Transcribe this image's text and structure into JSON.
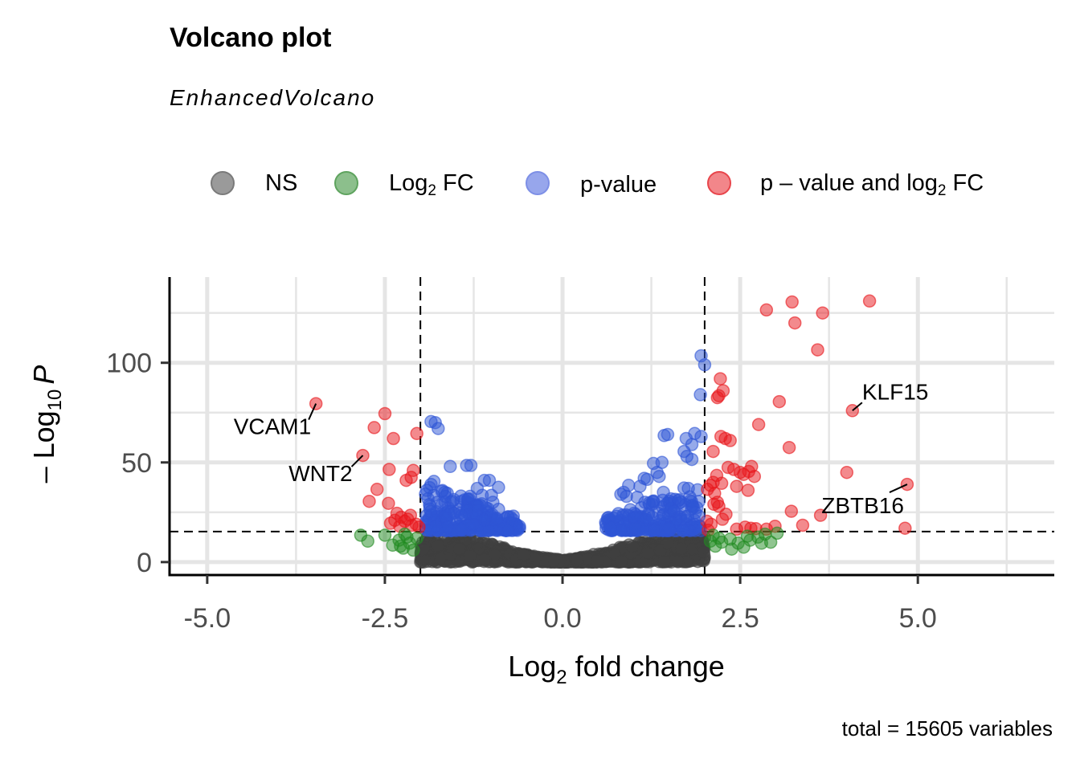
{
  "chart_data": {
    "type": "scatter",
    "title": "Volcano plot",
    "subtitle": "EnhancedVolcano",
    "caption": "total = 15605 variables",
    "xlabel": "Log2 fold change",
    "xlabel_parts": {
      "pre": "Log",
      "sub": "2",
      "post": " fold change"
    },
    "ylabel": "-Log10 P",
    "ylabel_parts": {
      "pre": "– Log",
      "sub": "10",
      "post": "P"
    },
    "xlim": [
      -5.53,
      6.92
    ],
    "ylim": [
      -6.5,
      143
    ],
    "x_ticks": [
      -5.0,
      -2.5,
      0.0,
      2.5,
      5.0
    ],
    "x_tick_labels": [
      "-5.0",
      "-2.5",
      "0.0",
      "2.5",
      "5.0"
    ],
    "y_ticks": [
      0,
      50,
      100
    ],
    "y_tick_labels": [
      "0",
      "50",
      "100"
    ],
    "grid": true,
    "legend_position": "top",
    "thresholds": {
      "log2fc": [
        -2.0,
        2.0
      ],
      "neg_log10_p": 15.3
    },
    "colors": {
      "NS": "#404040",
      "Log2 FC": "#228b22",
      "p-value": "#2e55d6",
      "p - value and log2 FC": "#e8151b",
      "grid": "#e5e5e5"
    },
    "legend": [
      {
        "key": "NS",
        "label": "NS",
        "color": "#9a9a9a",
        "stroke": "#7a7a7a"
      },
      {
        "key": "Log2 FC",
        "label_pre": "Log",
        "label_sub": "2",
        "label_post": " FC",
        "color": "#8cbf8c",
        "stroke": "#5ea35e"
      },
      {
        "key": "p-value",
        "label": "p-value",
        "color": "#97a6ec",
        "stroke": "#7d8fe6"
      },
      {
        "key": "p - value and log2 FC",
        "label_pre": "p – value and log",
        "label_sub": "2",
        "label_post": " FC",
        "color": "#f2868a",
        "stroke": "#e8454b"
      }
    ],
    "total_variables": 15605,
    "series": [
      {
        "name": "p - value and log2 FC",
        "points": [
          [
            -3.47,
            79.5
          ],
          [
            -2.81,
            53.5
          ],
          [
            -2.5,
            74.5
          ],
          [
            -2.65,
            67.5
          ],
          [
            -2.38,
            62.0
          ],
          [
            -2.05,
            64.5
          ],
          [
            -2.1,
            46.0
          ],
          [
            -2.2,
            41.0
          ],
          [
            -2.44,
            46.5
          ],
          [
            -2.13,
            42.5
          ],
          [
            -2.61,
            36.5
          ],
          [
            -2.72,
            30.5
          ],
          [
            -2.45,
            29.5
          ],
          [
            -2.33,
            24.5
          ],
          [
            -2.14,
            23.5
          ],
          [
            -2.27,
            22.5
          ],
          [
            -2.22,
            20.5
          ],
          [
            -2.42,
            19.5
          ],
          [
            -2.12,
            18.5
          ],
          [
            -2.02,
            17.5
          ],
          [
            -2.29,
            18.0
          ],
          [
            -2.36,
            21.0
          ],
          [
            -2.18,
            21.5
          ],
          [
            -2.06,
            19.0
          ],
          [
            4.32,
            131.0
          ],
          [
            3.23,
            130.5
          ],
          [
            2.87,
            126.5
          ],
          [
            3.66,
            125.0
          ],
          [
            3.27,
            120.0
          ],
          [
            3.59,
            106.5
          ],
          [
            2.22,
            92.0
          ],
          [
            2.26,
            86.0
          ],
          [
            2.18,
            82.5
          ],
          [
            2.2,
            83.5
          ],
          [
            3.05,
            80.5
          ],
          [
            4.08,
            76.0
          ],
          [
            2.76,
            69.0
          ],
          [
            2.29,
            62.0
          ],
          [
            2.23,
            63.0
          ],
          [
            2.36,
            61.0
          ],
          [
            3.19,
            57.5
          ],
          [
            2.12,
            55.5
          ],
          [
            2.33,
            47.5
          ],
          [
            2.41,
            46.5
          ],
          [
            2.66,
            48.0
          ],
          [
            2.62,
            45.5
          ],
          [
            2.5,
            45.0
          ],
          [
            2.17,
            43.5
          ],
          [
            2.7,
            43.0
          ],
          [
            2.55,
            44.0
          ],
          [
            4.0,
            45.0
          ],
          [
            2.45,
            38.0
          ],
          [
            2.08,
            38.5
          ],
          [
            2.12,
            40.0
          ],
          [
            2.24,
            39.5
          ],
          [
            2.04,
            36.5
          ],
          [
            2.61,
            36.0
          ],
          [
            2.14,
            34.5
          ],
          [
            4.85,
            39.0
          ],
          [
            3.22,
            25.5
          ],
          [
            4.82,
            17.0
          ],
          [
            3.38,
            18.5
          ],
          [
            3.63,
            23.5
          ],
          [
            2.18,
            30.0
          ],
          [
            2.13,
            29.0
          ],
          [
            2.2,
            28.0
          ],
          [
            2.03,
            20.5
          ],
          [
            2.09,
            19.0
          ],
          [
            2.25,
            21.5
          ],
          [
            2.45,
            16.5
          ],
          [
            2.57,
            17.5
          ],
          [
            2.72,
            16.8
          ],
          [
            2.87,
            16.5
          ],
          [
            2.99,
            18.0
          ],
          [
            2.3,
            24.0
          ],
          [
            2.05,
            16.0
          ],
          [
            2.65,
            17.0
          ]
        ]
      },
      {
        "name": "p-value",
        "points": [
          [
            1.95,
            103.5
          ],
          [
            2.0,
            99.0
          ],
          [
            1.94,
            84.0
          ],
          [
            -1.85,
            70.5
          ],
          [
            -1.79,
            70.0
          ],
          [
            -1.75,
            67.0
          ],
          [
            -1.58,
            48.0
          ],
          [
            -1.35,
            48.5
          ],
          [
            -1.29,
            48.5
          ],
          [
            -1.81,
            40.5
          ],
          [
            -1.85,
            39.0
          ],
          [
            -1.91,
            36.0
          ],
          [
            -1.65,
            33.0
          ],
          [
            -1.55,
            30.5
          ],
          [
            1.43,
            63.5
          ],
          [
            1.48,
            64.0
          ],
          [
            1.86,
            64.5
          ],
          [
            1.95,
            63.0
          ],
          [
            1.74,
            62.0
          ],
          [
            1.82,
            59.0
          ],
          [
            1.71,
            55.5
          ],
          [
            1.75,
            53.0
          ],
          [
            1.28,
            49.5
          ],
          [
            1.4,
            50.0
          ],
          [
            1.82,
            51.5
          ],
          [
            1.33,
            45.0
          ],
          [
            1.15,
            42.0
          ],
          [
            1.19,
            41.5
          ],
          [
            1.36,
            43.0
          ],
          [
            1.09,
            38.0
          ],
          [
            0.93,
            38.5
          ],
          [
            0.86,
            35.0
          ],
          [
            0.82,
            34.0
          ],
          [
            1.42,
            35.0
          ],
          [
            1.41,
            31.0
          ],
          [
            1.77,
            37.0
          ],
          [
            1.84,
            27.5
          ],
          [
            1.76,
            23.0
          ],
          [
            1.92,
            23.0
          ],
          [
            0.9,
            33.0
          ],
          [
            1.05,
            32.5
          ],
          [
            1.16,
            30.0
          ],
          [
            1.27,
            30.5
          ],
          [
            1.53,
            27.0
          ],
          [
            1.57,
            25.5
          ],
          [
            -1.1,
            41.0
          ],
          [
            -1.03,
            41.0
          ],
          [
            -0.9,
            37.5
          ],
          [
            -1.2,
            37.0
          ],
          [
            -1.13,
            33.5
          ],
          [
            -1.0,
            33.5
          ],
          [
            -0.98,
            30.0
          ],
          [
            -1.3,
            33.0
          ],
          [
            -1.34,
            26.0
          ],
          [
            -1.42,
            23.5
          ],
          [
            -0.9,
            26.5
          ],
          [
            -1.01,
            23.5
          ],
          [
            -1.2,
            26.0
          ],
          [
            -0.93,
            22.0
          ],
          [
            -1.1,
            21.0
          ],
          [
            -1.63,
            22.0
          ],
          [
            -1.52,
            24.5
          ],
          [
            -1.78,
            18.0
          ],
          [
            -1.62,
            17.5
          ]
        ]
      },
      {
        "name": "Log2 FC",
        "points": [
          [
            -2.84,
            13.5
          ],
          [
            -2.74,
            10.5
          ],
          [
            -2.5,
            13.5
          ],
          [
            -2.39,
            8.5
          ],
          [
            -2.22,
            14.0
          ],
          [
            -2.3,
            11.0
          ],
          [
            -2.15,
            9.5
          ],
          [
            -2.24,
            7.0
          ],
          [
            -2.1,
            6.0
          ],
          [
            -2.05,
            12.0
          ],
          [
            -2.19,
            12.5
          ],
          [
            -2.28,
            8.0
          ],
          [
            2.08,
            10.5
          ],
          [
            2.15,
            8.0
          ],
          [
            2.2,
            12.0
          ],
          [
            2.36,
            11.5
          ],
          [
            2.47,
            9.5
          ],
          [
            2.55,
            7.5
          ],
          [
            2.38,
            6.5
          ],
          [
            2.6,
            13.0
          ],
          [
            2.75,
            12.5
          ],
          [
            2.8,
            9.5
          ],
          [
            2.93,
            10.0
          ],
          [
            3.02,
            14.5
          ],
          [
            2.64,
            11.0
          ],
          [
            2.24,
            10.0
          ],
          [
            2.12,
            13.5
          ],
          [
            2.85,
            14.0
          ]
        ]
      }
    ],
    "labeled_genes": [
      {
        "name": "VCAM1",
        "x": -3.47,
        "y": 79.5
      },
      {
        "name": "WNT2",
        "x": -2.81,
        "y": 53.5
      },
      {
        "name": "KLF15",
        "x": 4.08,
        "y": 76.0
      },
      {
        "name": "ZBTB16",
        "x": 4.85,
        "y": 39.0
      }
    ],
    "ns_cloud_description_counts": {
      "ns_points_rendered_approx": 1400,
      "pvalue_cloud_points_approx": 420
    }
  }
}
